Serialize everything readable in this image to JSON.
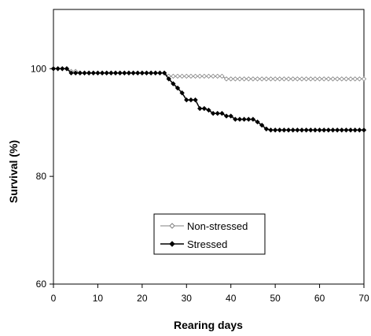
{
  "chart_data": {
    "type": "line",
    "xlabel": "Rearing days",
    "ylabel": "Survival (%)",
    "xlim": [
      0,
      70
    ],
    "ylim": [
      60,
      111
    ],
    "xticks": [
      0,
      10,
      20,
      30,
      40,
      50,
      60,
      70
    ],
    "yticks": [
      60,
      80,
      100
    ],
    "grid": false,
    "legend_position": "center-bottom",
    "series": [
      {
        "name": "Non-stressed",
        "marker": "open-diamond",
        "color": "#808080",
        "x": [
          0,
          1,
          2,
          3,
          4,
          5,
          6,
          7,
          8,
          9,
          10,
          11,
          12,
          13,
          14,
          15,
          16,
          17,
          18,
          19,
          20,
          21,
          22,
          23,
          24,
          25,
          26,
          27,
          28,
          29,
          30,
          31,
          32,
          33,
          34,
          35,
          36,
          37,
          38,
          39,
          40,
          41,
          42,
          43,
          44,
          45,
          46,
          47,
          48,
          49,
          50,
          51,
          52,
          53,
          54,
          55,
          56,
          57,
          58,
          59,
          60,
          61,
          62,
          63,
          64,
          65,
          66,
          67,
          68,
          69,
          70
        ],
        "y": [
          100,
          100,
          100,
          100,
          99.5,
          99.5,
          99.2,
          99.2,
          99.2,
          99.2,
          99.2,
          99.2,
          99.2,
          99.2,
          99.2,
          99.2,
          99.2,
          99.2,
          99.2,
          99.2,
          99.2,
          99.2,
          99.2,
          99.2,
          99.2,
          99.2,
          98.6,
          98.6,
          98.6,
          98.6,
          98.6,
          98.6,
          98.6,
          98.6,
          98.6,
          98.6,
          98.6,
          98.6,
          98.6,
          98.1,
          98.1,
          98.1,
          98.1,
          98.1,
          98.1,
          98.1,
          98.1,
          98.1,
          98.1,
          98.1,
          98.1,
          98.1,
          98.1,
          98.1,
          98.1,
          98.1,
          98.1,
          98.1,
          98.1,
          98.1,
          98.1,
          98.1,
          98.1,
          98.1,
          98.1,
          98.1,
          98.1,
          98.1,
          98.1,
          98.1,
          98.1
        ]
      },
      {
        "name": "Stressed",
        "marker": "filled-diamond",
        "color": "#000000",
        "x": [
          0,
          1,
          2,
          3,
          4,
          5,
          6,
          7,
          8,
          9,
          10,
          11,
          12,
          13,
          14,
          15,
          16,
          17,
          18,
          19,
          20,
          21,
          22,
          23,
          24,
          25,
          26,
          27,
          28,
          29,
          30,
          31,
          32,
          33,
          34,
          35,
          36,
          37,
          38,
          39,
          40,
          41,
          42,
          43,
          44,
          45,
          46,
          47,
          48,
          49,
          50,
          51,
          52,
          53,
          54,
          55,
          56,
          57,
          58,
          59,
          60,
          61,
          62,
          63,
          64,
          65,
          66,
          67,
          68,
          69,
          70
        ],
        "y": [
          100,
          100,
          100,
          100,
          99.2,
          99.2,
          99.2,
          99.2,
          99.2,
          99.2,
          99.2,
          99.2,
          99.2,
          99.2,
          99.2,
          99.2,
          99.2,
          99.2,
          99.2,
          99.2,
          99.2,
          99.2,
          99.2,
          99.2,
          99.2,
          99.2,
          98.1,
          97.2,
          96.4,
          95.5,
          94.2,
          94.2,
          94.2,
          92.6,
          92.6,
          92.3,
          91.7,
          91.7,
          91.7,
          91.2,
          91.2,
          90.6,
          90.6,
          90.6,
          90.6,
          90.6,
          90.1,
          89.5,
          88.8,
          88.6,
          88.6,
          88.6,
          88.6,
          88.6,
          88.6,
          88.6,
          88.6,
          88.6,
          88.6,
          88.6,
          88.6,
          88.6,
          88.6,
          88.6,
          88.6,
          88.6,
          88.6,
          88.6,
          88.6,
          88.6,
          88.6
        ]
      }
    ]
  }
}
